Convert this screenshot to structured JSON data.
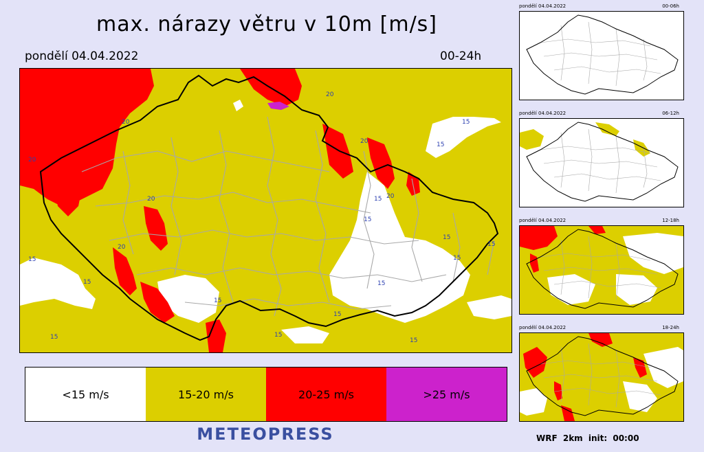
{
  "header": {
    "title": "max. nárazy větru v 10m [m/s]",
    "date": "pondělí 04.04.2022",
    "range": "00-24h"
  },
  "map": {
    "contour_labels": [
      "20",
      "15"
    ]
  },
  "legend": {
    "items": [
      {
        "label": "<15 m/s",
        "color": "#ffffff"
      },
      {
        "label": "15-20 m/s",
        "color": "#dccf00"
      },
      {
        "label": "20-25 m/s",
        "color": "#ff0000"
      },
      {
        "label": ">25 m/s",
        "color": "#cc22cc"
      }
    ]
  },
  "brand": "METEOPRESS",
  "thumbnails": [
    {
      "date": "pondělí 04.04.2022",
      "range": "00-06h"
    },
    {
      "date": "pondělí 04.04.2022",
      "range": "06-12h"
    },
    {
      "date": "pondělí 04.04.2022",
      "range": "12-18h"
    },
    {
      "date": "pondělí 04.04.2022",
      "range": "18-24h"
    }
  ],
  "footer": "WRF 2km init: 00:00",
  "colors": {
    "yellow": "#dccf00",
    "red": "#ff0000",
    "magenta": "#cc22cc",
    "white": "#ffffff",
    "border": "#000000",
    "region_lines": "#a8a8a8",
    "contour_label": "#2b3fb0",
    "brand": "#3a4fa0"
  }
}
